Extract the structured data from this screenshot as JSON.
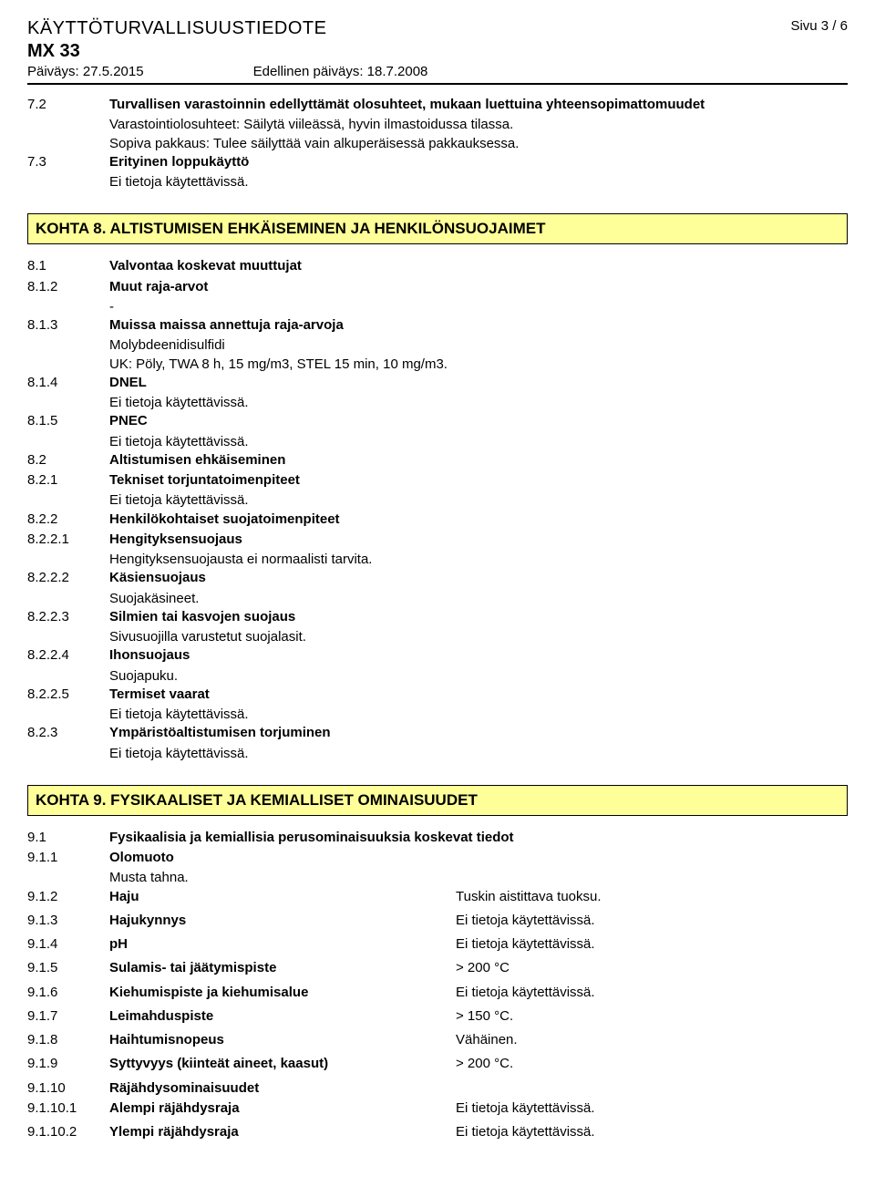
{
  "header": {
    "title": "KÄYTTÖTURVALLISUUSTIEDOTE",
    "product": "MX 33",
    "date_label_current": "Päiväys: 27.5.2015",
    "date_label_previous": "Edellinen päiväys: 18.7.2008",
    "page": "Sivu 3 / 6"
  },
  "s7": {
    "n72": "7.2",
    "t72_title": "Turvallisen varastoinnin edellyttämät olosuhteet, mukaan luettuina yhteensopimattomuudet",
    "t72_l1": "Varastointiolosuhteet: Säilytä viileässä, hyvin ilmastoidussa tilassa.",
    "t72_l2": "Sopiva pakkaus: Tulee säilyttää vain alkuperäisessä pakkauksessa.",
    "n73": "7.3",
    "t73_title": "Erityinen loppukäyttö",
    "t73_l1": "Ei tietoja käytettävissä."
  },
  "k8": {
    "header": "KOHTA 8. ALTISTUMISEN EHKÄISEMINEN JA HENKILÖNSUOJAIMET",
    "n81": "8.1",
    "t81": "Valvontaa koskevat muuttujat",
    "n812": "8.1.2",
    "t812": "Muut raja-arvot",
    "t812_sub": "-",
    "n813": "8.1.3",
    "t813": "Muissa maissa annettuja raja-arvoja",
    "t813_l1": "Molybdeenidisulfidi",
    "t813_l2": "UK: Pöly, TWA 8 h, 15 mg/m3, STEL 15 min, 10 mg/m3.",
    "n814": "8.1.4",
    "t814": "DNEL",
    "t814_l1": "Ei tietoja käytettävissä.",
    "n815": "8.1.5",
    "t815": "PNEC",
    "t815_l1": "Ei tietoja käytettävissä.",
    "n82": "8.2",
    "t82": "Altistumisen ehkäiseminen",
    "n821": "8.2.1",
    "t821": "Tekniset torjuntatoimenpiteet",
    "t821_l1": "Ei tietoja käytettävissä.",
    "n822": "8.2.2",
    "t822": "Henkilökohtaiset suojatoimenpiteet",
    "n8221": "8.2.2.1",
    "t8221": "Hengityksensuojaus",
    "t8221_l1": "Hengityksensuojausta ei normaalisti tarvita.",
    "n8222": "8.2.2.2",
    "t8222": "Käsiensuojaus",
    "t8222_l1": "Suojakäsineet.",
    "n8223": "8.2.2.3",
    "t8223": "Silmien tai kasvojen suojaus",
    "t8223_l1": "Sivusuojilla varustetut suojalasit.",
    "n8224": "8.2.2.4",
    "t8224": "Ihonsuojaus",
    "t8224_l1": "Suojapuku.",
    "n8225": "8.2.2.5",
    "t8225": "Termiset vaarat",
    "t8225_l1": "Ei tietoja käytettävissä.",
    "n823": "8.2.3",
    "t823": "Ympäristöaltistumisen torjuminen",
    "t823_l1": "Ei tietoja käytettävissä."
  },
  "k9": {
    "header": "KOHTA 9. FYSIKAALISET JA KEMIALLISET OMINAISUUDET",
    "n91": "9.1",
    "t91": "Fysikaalisia ja kemiallisia perusominaisuuksia koskevat tiedot",
    "n911": "9.1.1",
    "t911": "Olomuoto",
    "t911_l1": "Musta tahna.",
    "rows": [
      {
        "n": "9.1.2",
        "label": "Haju",
        "val": "Tuskin aistittava tuoksu."
      },
      {
        "n": "9.1.3",
        "label": "Hajukynnys",
        "val": "Ei tietoja käytettävissä."
      },
      {
        "n": "9.1.4",
        "label": "pH",
        "val": "Ei tietoja käytettävissä."
      },
      {
        "n": "9.1.5",
        "label": "Sulamis- tai jäätymispiste",
        "val": "> 200 °C"
      },
      {
        "n": "9.1.6",
        "label": "Kiehumispiste ja kiehumisalue",
        "val": "Ei tietoja käytettävissä."
      },
      {
        "n": "9.1.7",
        "label": "Leimahduspiste",
        "val": "> 150 °C."
      },
      {
        "n": "9.1.8",
        "label": "Haihtumisnopeus",
        "val": "Vähäinen."
      },
      {
        "n": "9.1.9",
        "label": "Syttyvyys (kiinteät aineet, kaasut)",
        "val": "> 200 °C."
      }
    ],
    "n9110": "9.1.10",
    "t9110": "Räjähdysominaisuudet",
    "rows2": [
      {
        "n": "9.1.10.1",
        "label": "Alempi räjähdysraja",
        "val": "Ei tietoja käytettävissä."
      },
      {
        "n": "9.1.10.2",
        "label": "Ylempi räjähdysraja",
        "val": "Ei tietoja käytettävissä."
      }
    ]
  }
}
